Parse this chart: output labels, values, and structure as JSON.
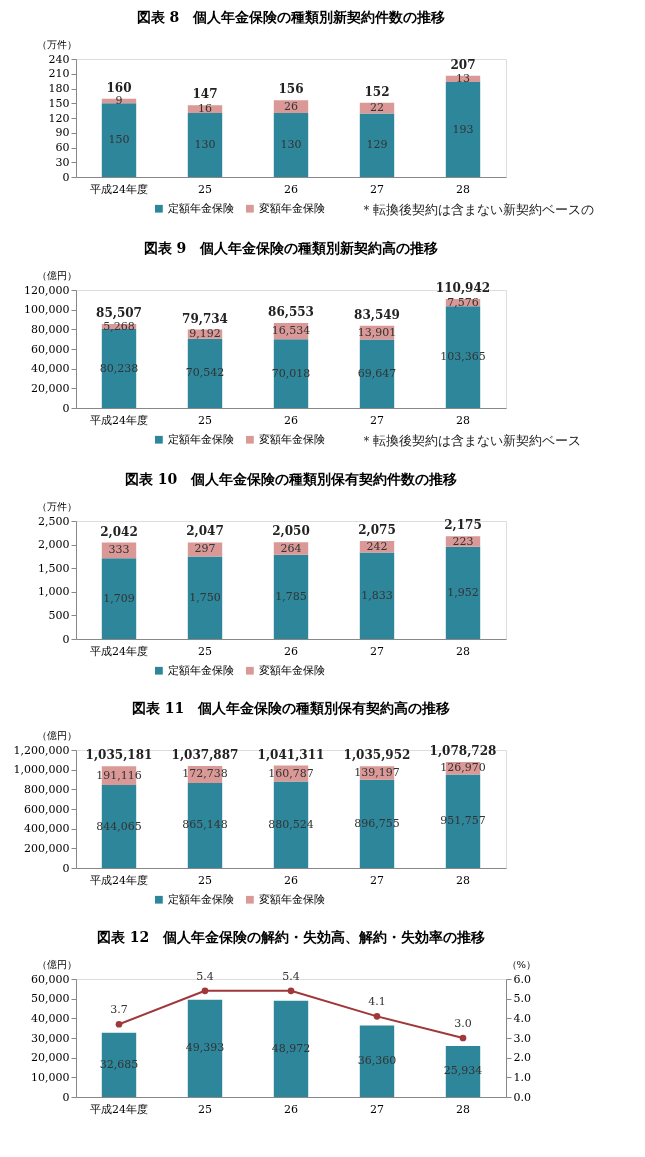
{
  "chart_data": [
    {
      "type": "bar",
      "stacked": true,
      "title": "図表 8　個人年金保険の種類別新契約件数の推移",
      "ylabel": "（万件）",
      "categories": [
        "平成24年度",
        "25",
        "26",
        "27",
        "28"
      ],
      "series": [
        {
          "name": "定額年金保険",
          "color": "#2e869b",
          "values": [
            150,
            130,
            130,
            129,
            193
          ]
        },
        {
          "name": "変額年金保険",
          "color": "#da9896",
          "values": [
            9,
            16,
            26,
            22,
            13
          ]
        }
      ],
      "ylim": [
        0,
        240
      ],
      "yticks": [
        0,
        30,
        60,
        90,
        120,
        150,
        180,
        210,
        240
      ],
      "data_labels": true,
      "totals": [
        "160",
        "147",
        "156",
        "152",
        "207"
      ],
      "legend": "bottom",
      "annotations": [
        "＊転換後契約は含まない新契約ベースの"
      ]
    },
    {
      "type": "bar",
      "stacked": true,
      "title": "図表 9　個人年金保険の種類別新契約高の推移",
      "ylabel": "（億円）",
      "categories": [
        "平成24年度",
        "25",
        "26",
        "27",
        "28"
      ],
      "series": [
        {
          "name": "定額年金保険",
          "color": "#2e869b",
          "values": [
            80238,
            70542,
            70018,
            69647,
            103365
          ],
          "value_labels": [
            "80,238",
            "70,542",
            "70,018",
            "69,647",
            "103,365"
          ]
        },
        {
          "name": "変額年金保険",
          "color": "#da9896",
          "values": [
            5268,
            9192,
            16534,
            13901,
            7576
          ],
          "value_labels": [
            "5,268",
            "9,192",
            "16,534",
            "13,901",
            "7,576"
          ]
        }
      ],
      "ylim": [
        0,
        120000
      ],
      "yticks": [
        {
          "value": 0,
          "label": "0"
        },
        {
          "value": 20000,
          "label": "20,000"
        },
        {
          "value": 40000,
          "label": "40,000"
        },
        {
          "value": 60000,
          "label": "60,000"
        },
        {
          "value": 80000,
          "label": "80,000"
        },
        {
          "value": 100000,
          "label": "100,000"
        },
        {
          "value": 120000,
          "label": "120,000"
        }
      ],
      "totals": [
        "85,507",
        "79,734",
        "86,553",
        "83,549",
        "110,942"
      ],
      "legend": "bottom",
      "annotations": [
        "＊転換後契約は含まない新契約ベース"
      ]
    },
    {
      "type": "bar",
      "stacked": true,
      "title": "図表 10　個人年金保険の種類別保有契約件数の推移",
      "ylabel": "（万件）",
      "categories": [
        "平成24年度",
        "25",
        "26",
        "27",
        "28"
      ],
      "series": [
        {
          "name": "定額年金保険",
          "color": "#2e869b",
          "values": [
            1709,
            1750,
            1785,
            1833,
            1952
          ],
          "value_labels": [
            "1,709",
            "1,750",
            "1,785",
            "1,833",
            "1,952"
          ]
        },
        {
          "name": "変額年金保険",
          "color": "#da9896",
          "values": [
            333,
            297,
            264,
            242,
            223
          ],
          "value_labels": [
            "333",
            "297",
            "264",
            "242",
            "223"
          ]
        }
      ],
      "ylim": [
        0,
        2500
      ],
      "yticks": [
        0,
        500,
        {
          "value": 1000,
          "label": "1,000"
        },
        {
          "value": 1500,
          "label": "1,500"
        },
        {
          "value": 2000,
          "label": "2,000"
        },
        {
          "value": 2500,
          "label": "2,500"
        }
      ],
      "totals": [
        "2,042",
        "2,047",
        "2,050",
        "2,075",
        "2,175"
      ],
      "legend": "bottom"
    },
    {
      "type": "bar",
      "stacked": true,
      "title": "図表 11　個人年金保険の種類別保有契約高の推移",
      "ylabel": "（億円）",
      "categories": [
        "平成24年度",
        "25",
        "26",
        "27",
        "28"
      ],
      "series": [
        {
          "name": "定額年金保険",
          "color": "#2e869b",
          "values": [
            844065,
            865148,
            880524,
            896755,
            951757
          ],
          "value_labels": [
            "844,065",
            "865,148",
            "880,524",
            "896,755",
            "951,757"
          ]
        },
        {
          "name": "変額年金保険",
          "color": "#da9896",
          "values": [
            191116,
            172738,
            160787,
            139197,
            126970
          ],
          "value_labels": [
            "191,116",
            "172,738",
            "160,787",
            "139,197",
            "126,970"
          ]
        }
      ],
      "ylim": [
        0,
        1200000
      ],
      "yticks": [
        0,
        {
          "value": 200000,
          "label": "200,000"
        },
        {
          "value": 400000,
          "label": "400,000"
        },
        {
          "value": 600000,
          "label": "600,000"
        },
        {
          "value": 800000,
          "label": "800,000"
        },
        {
          "value": 1000000,
          "label": "1,000,000"
        },
        {
          "value": 1200000,
          "label": "1,200,000"
        }
      ],
      "totals": [
        "1,035,181",
        "1,037,887",
        "1,041,311",
        "1,035,952",
        "1,078,728"
      ],
      "legend": "bottom"
    },
    {
      "type": "bar",
      "title": "図表 12　個人年金保険の解約・失効高、解約・失効率の推移",
      "ylabel": "（億円）",
      "y2label": "（%）",
      "categories": [
        "平成24年度",
        "25",
        "26",
        "27",
        "28"
      ],
      "series": [
        {
          "type": "bar",
          "color": "#2e869b",
          "values": [
            32685,
            49393,
            48972,
            36360,
            25934
          ],
          "value_labels": [
            "32,685",
            "49,393",
            "48,972",
            "36,360",
            "25,934"
          ]
        },
        {
          "type": "line",
          "axis": "y2",
          "color": "#a0373a",
          "values": [
            3.7,
            5.4,
            5.4,
            4.1,
            3.0
          ],
          "value_labels": [
            "3.7",
            "5.4",
            "5.4",
            "4.1",
            "3.0"
          ]
        }
      ],
      "ylim": [
        0,
        60000
      ],
      "yticks": [
        0,
        {
          "value": 10000,
          "label": "10,000"
        },
        {
          "value": 20000,
          "label": "20,000"
        },
        {
          "value": 30000,
          "label": "30,000"
        },
        {
          "value": 40000,
          "label": "40,000"
        },
        {
          "value": 50000,
          "label": "50,000"
        },
        {
          "value": 60000,
          "label": "60,000"
        }
      ],
      "y2lim": [
        0,
        6
      ],
      "y2ticks": [
        {
          "value": 0,
          "label": "0.0"
        },
        {
          "value": 1,
          "label": "1.0"
        },
        {
          "value": 2,
          "label": "2.0"
        },
        {
          "value": 3,
          "label": "3.0"
        },
        {
          "value": 4,
          "label": "4.0"
        },
        {
          "value": 5,
          "label": "5.0"
        },
        {
          "value": 6,
          "label": "6.0"
        }
      ],
      "marker": "circle"
    }
  ]
}
